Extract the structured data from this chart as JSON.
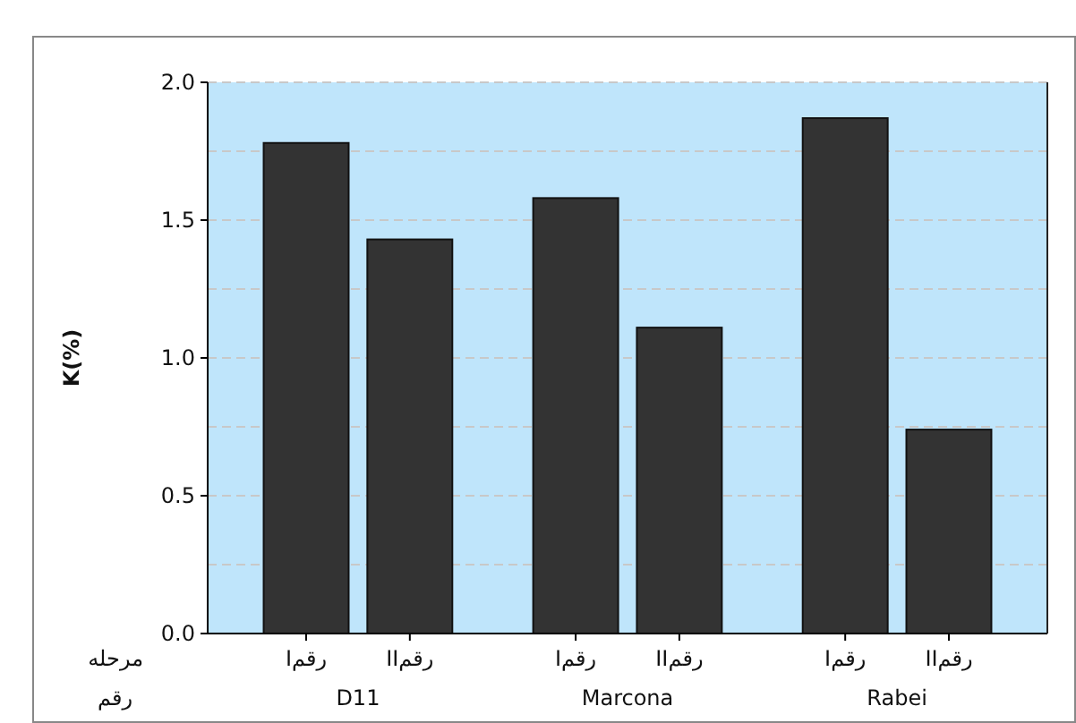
{
  "chart_data": {
    "type": "bar",
    "ylabel": "K(%)",
    "categories": [
      "Iرقم",
      "IIرقم",
      "Iرقم",
      "IIرقم",
      "Iرقم",
      "IIرقم"
    ],
    "values": [
      1.78,
      1.43,
      1.58,
      1.11,
      1.87,
      0.74
    ],
    "color": "#333333",
    "ylim": [
      0,
      2.0
    ],
    "yticks": [
      {
        "value": 0,
        "label": "0.0"
      },
      {
        "value": 0.25,
        "label": null
      },
      0.5,
      {
        "value": 0.75,
        "label": null
      },
      {
        "value": 1,
        "label": "1.0"
      },
      {
        "value": 1.25,
        "label": null
      },
      1.5,
      {
        "value": 1.75,
        "label": null
      },
      {
        "value": 2,
        "label": "2.0"
      }
    ],
    "grid": "y",
    "annotations": [
      "مرحله",
      "رقم",
      "D11",
      "Marcona",
      "Rabei"
    ]
  }
}
